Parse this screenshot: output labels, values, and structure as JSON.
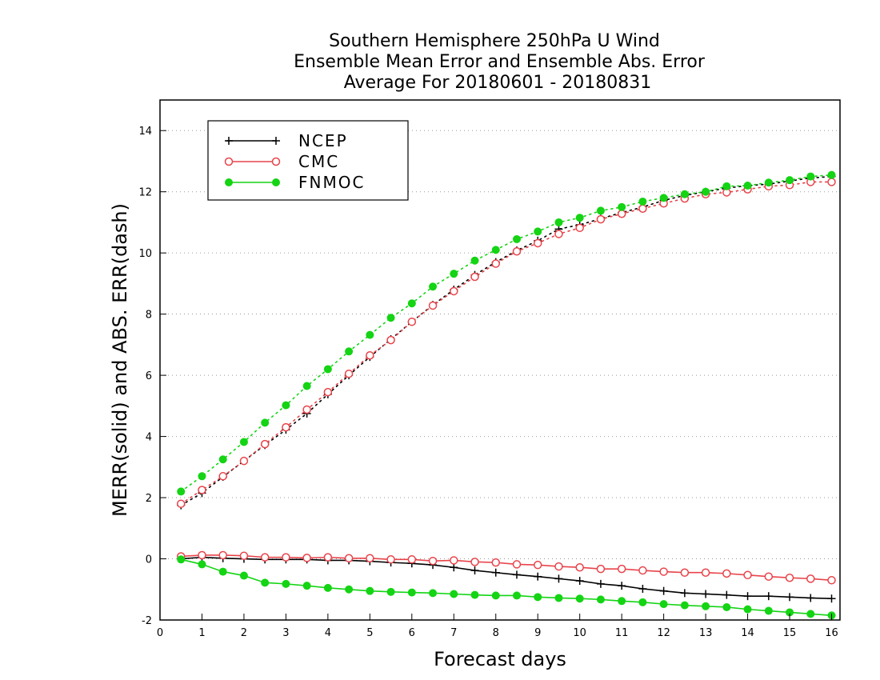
{
  "chart_data": {
    "type": "line",
    "title": "Southern Hemisphere 250hPa U Wind",
    "subtitle": "Ensemble Mean Error and Ensemble Abs. Error",
    "subtitle2": "Average For 20180601 - 20180831",
    "xlabel": "Forecast days",
    "ylabel": "MERR(solid) and ABS. ERR(dash)",
    "xlim": [
      0,
      16.2
    ],
    "ylim": [
      -2,
      15
    ],
    "xticks": [
      "0",
      "1",
      "2",
      "3",
      "4",
      "5",
      "6",
      "7",
      "8",
      "9",
      "10",
      "11",
      "12",
      "13",
      "14",
      "15",
      "16"
    ],
    "yticks": [
      "-2",
      "0",
      "2",
      "4",
      "6",
      "8",
      "10",
      "12",
      "14"
    ],
    "grid": "horizontal dotted",
    "legend_position": "top-left",
    "x": [
      0.5,
      1,
      1.5,
      2,
      2.5,
      3,
      3.5,
      4,
      4.5,
      5,
      5.5,
      6,
      6.5,
      7,
      7.5,
      8,
      8.5,
      9,
      9.5,
      10,
      10.5,
      11,
      11.5,
      12,
      12.5,
      13,
      13.5,
      14,
      14.5,
      15,
      15.5,
      16
    ],
    "series": [
      {
        "name": "NCEP",
        "color": "#000000",
        "marker": "plus",
        "merr": [
          0.0,
          0.05,
          0.02,
          0.0,
          -0.02,
          -0.02,
          -0.02,
          -0.05,
          -0.05,
          -0.08,
          -0.12,
          -0.15,
          -0.2,
          -0.28,
          -0.38,
          -0.45,
          -0.52,
          -0.58,
          -0.65,
          -0.72,
          -0.82,
          -0.88,
          -0.98,
          -1.05,
          -1.12,
          -1.15,
          -1.18,
          -1.22,
          -1.22,
          -1.25,
          -1.28,
          -1.3
        ],
        "abs_err": [
          1.75,
          2.15,
          2.68,
          3.2,
          3.72,
          4.22,
          4.75,
          5.38,
          6.0,
          6.6,
          7.18,
          7.75,
          8.3,
          8.8,
          9.28,
          9.7,
          10.08,
          10.4,
          10.78,
          10.92,
          11.12,
          11.32,
          11.5,
          11.72,
          11.88,
          12.0,
          12.12,
          12.2,
          12.25,
          12.35,
          12.45,
          12.5
        ]
      },
      {
        "name": "CMC",
        "color": "#e8434a",
        "marker": "open-circle",
        "merr": [
          0.08,
          0.12,
          0.12,
          0.1,
          0.05,
          0.05,
          0.03,
          0.05,
          0.02,
          0.02,
          -0.02,
          -0.02,
          -0.07,
          -0.05,
          -0.1,
          -0.12,
          -0.18,
          -0.2,
          -0.25,
          -0.28,
          -0.33,
          -0.33,
          -0.38,
          -0.42,
          -0.45,
          -0.45,
          -0.48,
          -0.53,
          -0.58,
          -0.62,
          -0.65,
          -0.7
        ],
        "abs_err": [
          1.8,
          2.25,
          2.7,
          3.2,
          3.75,
          4.3,
          4.88,
          5.45,
          6.05,
          6.65,
          7.15,
          7.75,
          8.28,
          8.75,
          9.22,
          9.65,
          10.05,
          10.32,
          10.62,
          10.82,
          11.1,
          11.28,
          11.45,
          11.62,
          11.78,
          11.92,
          11.98,
          12.08,
          12.18,
          12.22,
          12.32,
          12.32
        ]
      },
      {
        "name": "FNMOC",
        "color": "#14d414",
        "marker": "filled-circle",
        "merr": [
          -0.02,
          -0.18,
          -0.42,
          -0.55,
          -0.78,
          -0.82,
          -0.88,
          -0.95,
          -1.0,
          -1.05,
          -1.08,
          -1.1,
          -1.12,
          -1.15,
          -1.18,
          -1.2,
          -1.2,
          -1.25,
          -1.28,
          -1.3,
          -1.33,
          -1.38,
          -1.42,
          -1.48,
          -1.52,
          -1.55,
          -1.58,
          -1.65,
          -1.7,
          -1.75,
          -1.8,
          -1.85
        ],
        "abs_err": [
          2.2,
          2.7,
          3.25,
          3.82,
          4.45,
          5.02,
          5.65,
          6.2,
          6.78,
          7.32,
          7.88,
          8.35,
          8.9,
          9.32,
          9.75,
          10.1,
          10.45,
          10.7,
          11.0,
          11.15,
          11.38,
          11.5,
          11.68,
          11.8,
          11.92,
          12.0,
          12.18,
          12.2,
          12.3,
          12.38,
          12.5,
          12.55
        ]
      }
    ]
  }
}
